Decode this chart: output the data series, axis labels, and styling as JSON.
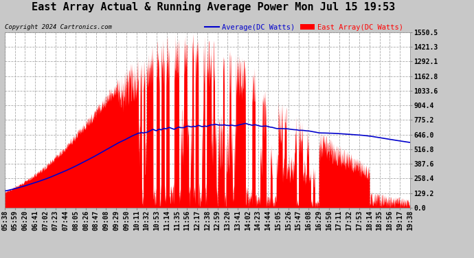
{
  "title": "East Array Actual & Running Average Power Mon Jul 15 19:53",
  "copyright": "Copyright 2024 Cartronics.com",
  "legend_avg": "Average(DC Watts)",
  "legend_east": "East Array(DC Watts)",
  "ylabel_ticks": [
    0.0,
    129.2,
    258.4,
    387.6,
    516.8,
    646.0,
    775.2,
    904.4,
    1033.6,
    1162.8,
    1292.1,
    1421.3,
    1550.5
  ],
  "x_labels": [
    "05:38",
    "05:59",
    "06:20",
    "06:41",
    "07:02",
    "07:23",
    "07:44",
    "08:05",
    "08:26",
    "08:47",
    "09:08",
    "09:29",
    "09:50",
    "10:11",
    "10:32",
    "10:53",
    "11:14",
    "11:35",
    "11:56",
    "12:17",
    "12:38",
    "12:59",
    "13:20",
    "13:41",
    "14:02",
    "14:23",
    "14:44",
    "15:05",
    "15:26",
    "15:47",
    "16:08",
    "16:29",
    "16:50",
    "17:11",
    "17:32",
    "17:53",
    "18:14",
    "18:35",
    "18:56",
    "19:17",
    "19:38"
  ],
  "bg_color": "#c8c8c8",
  "plot_bg_color": "#ffffff",
  "east_color": "#ff0000",
  "avg_color": "#0000cc",
  "grid_color": "#aaaaaa",
  "title_color": "#000000",
  "title_fontsize": 11,
  "tick_fontsize": 7,
  "ymax": 1550.5,
  "ymin": 0.0
}
